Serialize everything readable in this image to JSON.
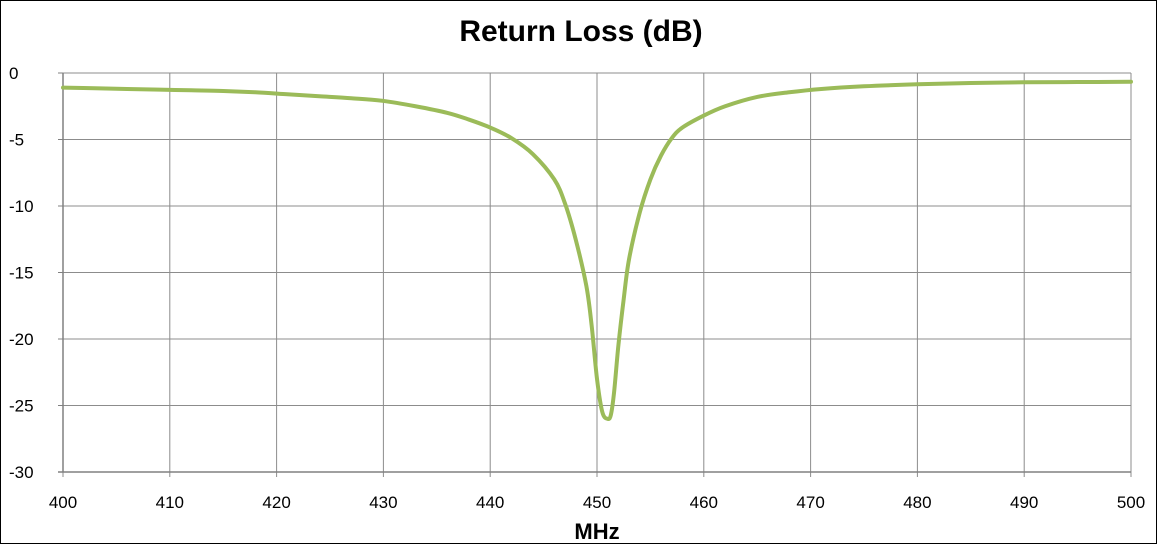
{
  "chart_data": {
    "type": "line",
    "title": "Return Loss (dB)",
    "xlabel": "MHz",
    "ylabel": "",
    "xlim": [
      400,
      500
    ],
    "ylim": [
      -30,
      0
    ],
    "x_ticks": [
      400,
      410,
      420,
      430,
      440,
      450,
      460,
      470,
      480,
      490,
      500
    ],
    "y_ticks": [
      0,
      -5,
      -10,
      -15,
      -20,
      -25,
      -30
    ],
    "grid": true,
    "legend": "none",
    "colors": {
      "series": "#9bbb59",
      "grid": "#8c8c8c",
      "axis": "#808080"
    },
    "series": [
      {
        "x": [
          400,
          403,
          406,
          409,
          412,
          415,
          418,
          421,
          424,
          427,
          430,
          433,
          436,
          438,
          440,
          442,
          444,
          446,
          447,
          448,
          449,
          449.5,
          450,
          450.5,
          451,
          451.3,
          451.6,
          452,
          452.5,
          453,
          454,
          455,
          456,
          457,
          458,
          460,
          462,
          465,
          468,
          471,
          475,
          480,
          485,
          490,
          495,
          500
        ],
        "y": [
          -1.1,
          -1.15,
          -1.2,
          -1.25,
          -1.3,
          -1.35,
          -1.45,
          -1.6,
          -1.75,
          -1.9,
          -2.1,
          -2.5,
          -3.0,
          -3.5,
          -4.1,
          -4.9,
          -6.1,
          -8.0,
          -9.8,
          -12.5,
          -16.0,
          -19.0,
          -23.0,
          -25.5,
          -26.0,
          -25.7,
          -24.0,
          -20.5,
          -17.0,
          -14.0,
          -10.5,
          -8.0,
          -6.2,
          -4.9,
          -4.1,
          -3.2,
          -2.5,
          -1.8,
          -1.45,
          -1.2,
          -1.0,
          -0.85,
          -0.75,
          -0.7,
          -0.68,
          -0.66
        ]
      }
    ]
  }
}
